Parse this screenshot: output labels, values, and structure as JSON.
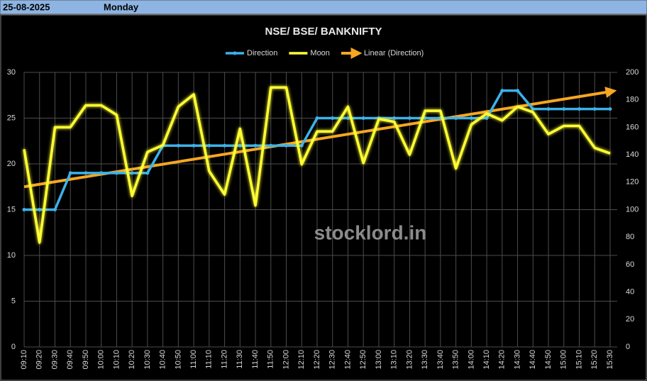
{
  "header": {
    "date": "25-08-2025",
    "day": "Monday"
  },
  "chart_data": {
    "type": "line",
    "title": "NSE/ BSE/ BANKNIFTY",
    "watermark": "stocklord.in",
    "categories": [
      "09:10",
      "09:20",
      "09:30",
      "09:40",
      "09:50",
      "10:00",
      "10:10",
      "10:20",
      "10:30",
      "10:40",
      "10:50",
      "11:00",
      "11:10",
      "11:20",
      "11:30",
      "11:40",
      "11:50",
      "12:00",
      "12:10",
      "12:20",
      "12:30",
      "12:40",
      "12:50",
      "13:00",
      "13:10",
      "13:20",
      "13:30",
      "13:40",
      "13:50",
      "14:00",
      "14:10",
      "14:20",
      "14:30",
      "14:40",
      "14:50",
      "15:00",
      "15:10",
      "15:20",
      "15:30"
    ],
    "series": [
      {
        "name": "Direction",
        "color": "#3cb2ea",
        "markers": true,
        "values": [
          15,
          15,
          15,
          19,
          19,
          19,
          19,
          19,
          19,
          22,
          22,
          22,
          22,
          22,
          22,
          22,
          22,
          22,
          22,
          25,
          25,
          25,
          25,
          25,
          25,
          25,
          25,
          25,
          25,
          25,
          25,
          28,
          28,
          26,
          26,
          26,
          26,
          26,
          26
        ]
      },
      {
        "name": "Moon",
        "color": "#ffff33",
        "axis": "y2",
        "glow": true,
        "values": [
          144,
          76,
          160,
          160,
          176,
          176,
          169,
          110,
          142,
          147,
          175,
          184,
          128,
          111,
          159,
          103,
          189,
          189,
          133,
          157,
          157,
          175,
          134,
          166,
          164,
          140,
          172,
          172,
          130,
          162,
          170,
          165,
          175,
          171,
          155,
          161,
          161,
          145,
          141
        ]
      }
    ],
    "trendline": {
      "name": "Linear (Direction)",
      "color": "#f5a623",
      "values": [
        17.5,
        27.9
      ]
    },
    "ylim": [
      0,
      30
    ],
    "yticks": [
      0,
      5,
      10,
      15,
      20,
      25,
      30
    ],
    "y2lim": [
      0,
      200
    ],
    "y2ticks": [
      0,
      20,
      40,
      60,
      80,
      100,
      120,
      140,
      160,
      180,
      200
    ],
    "grid": true
  }
}
